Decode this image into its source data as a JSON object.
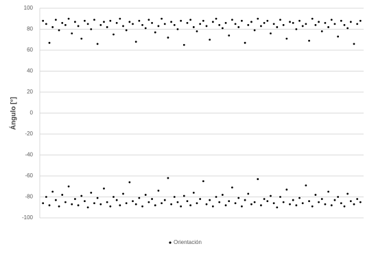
{
  "chart_data": {
    "type": "scatter",
    "y_label": "Ángulo [°]",
    "ylim": [
      -100,
      100
    ],
    "yticks": [
      -100,
      -80,
      -60,
      -40,
      -20,
      0,
      20,
      40,
      60,
      80,
      100
    ],
    "xlim": [
      0,
      101
    ],
    "grid": true,
    "legend": "bottom",
    "series": [
      {
        "name": "Orientación",
        "color": "#000000",
        "x": [
          1,
          2,
          3,
          4,
          5,
          6,
          7,
          8,
          9,
          10,
          11,
          12,
          13,
          14,
          15,
          16,
          17,
          18,
          19,
          20,
          21,
          22,
          23,
          24,
          25,
          26,
          27,
          28,
          29,
          30,
          31,
          32,
          33,
          34,
          35,
          36,
          37,
          38,
          39,
          40,
          41,
          42,
          43,
          44,
          45,
          46,
          47,
          48,
          49,
          50,
          51,
          52,
          53,
          54,
          55,
          56,
          57,
          58,
          59,
          60,
          61,
          62,
          63,
          64,
          65,
          66,
          67,
          68,
          69,
          70,
          71,
          72,
          73,
          74,
          75,
          76,
          77,
          78,
          79,
          80,
          81,
          82,
          83,
          84,
          85,
          86,
          87,
          88,
          89,
          90,
          91,
          92,
          93,
          94,
          95,
          96,
          97,
          98,
          99,
          100,
          1,
          2,
          3,
          4,
          5,
          6,
          7,
          8,
          9,
          10,
          11,
          12,
          13,
          14,
          15,
          16,
          17,
          18,
          19,
          20,
          21,
          22,
          23,
          24,
          25,
          26,
          27,
          28,
          29,
          30,
          31,
          32,
          33,
          34,
          35,
          36,
          37,
          38,
          39,
          40,
          41,
          42,
          43,
          44,
          45,
          46,
          47,
          48,
          49,
          50,
          51,
          52,
          53,
          54,
          55,
          56,
          57,
          58,
          59,
          60,
          61,
          62,
          63,
          64,
          65,
          66,
          67,
          68,
          69,
          70,
          71,
          72,
          73,
          74,
          75,
          76,
          77,
          78,
          79,
          80,
          81,
          82,
          83,
          84,
          85,
          86,
          87,
          88,
          89,
          90,
          91,
          92,
          93,
          94,
          95,
          96,
          97,
          98,
          99,
          100
        ],
        "values": [
          88,
          85,
          67,
          82,
          89,
          79,
          86,
          84,
          90,
          76,
          87,
          83,
          71,
          88,
          85,
          80,
          89,
          66,
          84,
          87,
          82,
          88,
          75,
          86,
          90,
          83,
          79,
          87,
          85,
          68,
          88,
          84,
          81,
          89,
          86,
          77,
          83,
          90,
          85,
          72,
          87,
          84,
          80,
          88,
          65,
          86,
          89,
          82,
          78,
          85,
          88,
          83,
          70,
          87,
          90,
          84,
          81,
          86,
          74,
          89,
          85,
          82,
          88,
          67,
          84,
          87,
          79,
          90,
          83,
          86,
          88,
          76,
          85,
          82,
          89,
          84,
          71,
          87,
          86,
          80,
          88,
          83,
          85,
          69,
          90,
          84,
          87,
          78,
          86,
          82,
          89,
          85,
          73,
          88,
          84,
          81,
          87,
          66,
          85,
          88,
          -86,
          -80,
          -88,
          -75,
          -83,
          -89,
          -78,
          -85,
          -70,
          -87,
          -82,
          -88,
          -79,
          -84,
          -90,
          -76,
          -86,
          -81,
          -87,
          -72,
          -85,
          -89,
          -80,
          -83,
          -88,
          -77,
          -86,
          -66,
          -84,
          -87,
          -81,
          -89,
          -78,
          -85,
          -82,
          -88,
          -74,
          -86,
          -83,
          -62,
          -87,
          -80,
          -85,
          -89,
          -79,
          -84,
          -88,
          -76,
          -86,
          -82,
          -65,
          -87,
          -83,
          -89,
          -80,
          -85,
          -78,
          -88,
          -84,
          -71,
          -86,
          -81,
          -89,
          -83,
          -77,
          -87,
          -85,
          -63,
          -88,
          -82,
          -84,
          -79,
          -86,
          -90,
          -80,
          -85,
          -73,
          -87,
          -83,
          -88,
          -81,
          -86,
          -69,
          -84,
          -89,
          -78,
          -85,
          -82,
          -87,
          -75,
          -88,
          -83,
          -80,
          -86,
          -89,
          -77,
          -84,
          -87,
          -82,
          -85
        ]
      }
    ]
  }
}
